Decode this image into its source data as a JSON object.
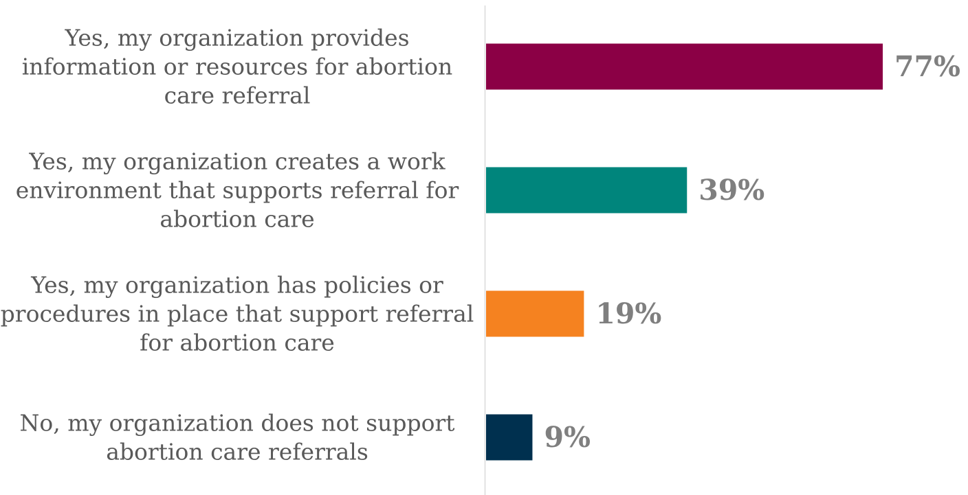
{
  "chart_data": {
    "type": "bar",
    "orientation": "horizontal",
    "categories": [
      "Yes, my organization provides information or resources for abortion care referral",
      "Yes, my organization creates a work environment that supports referral for abortion care",
      "Yes, my organization has policies or procedures in place that support referral for abortion care",
      "No, my organization does not support abortion care referrals"
    ],
    "category_lines": [
      [
        "Yes, my organization provides",
        "information or resources for abortion",
        "care referral"
      ],
      [
        "Yes, my organization creates a work",
        "environment that supports referral for",
        "abortion care"
      ],
      [
        "Yes, my organization has policies or",
        "procedures in place that support referral",
        "for abortion care"
      ],
      [
        "No, my organization does not support",
        "abortion care referrals"
      ]
    ],
    "values": [
      77,
      39,
      19,
      9
    ],
    "value_labels": [
      "77%",
      "39%",
      "19%",
      "9%"
    ],
    "bar_colors": [
      "#8b0045",
      "#00857c",
      "#f58220",
      "#00304f"
    ],
    "title": "",
    "xlabel": "",
    "ylabel": "",
    "xlim": [
      0,
      100
    ],
    "grid": false,
    "legend": "none"
  }
}
